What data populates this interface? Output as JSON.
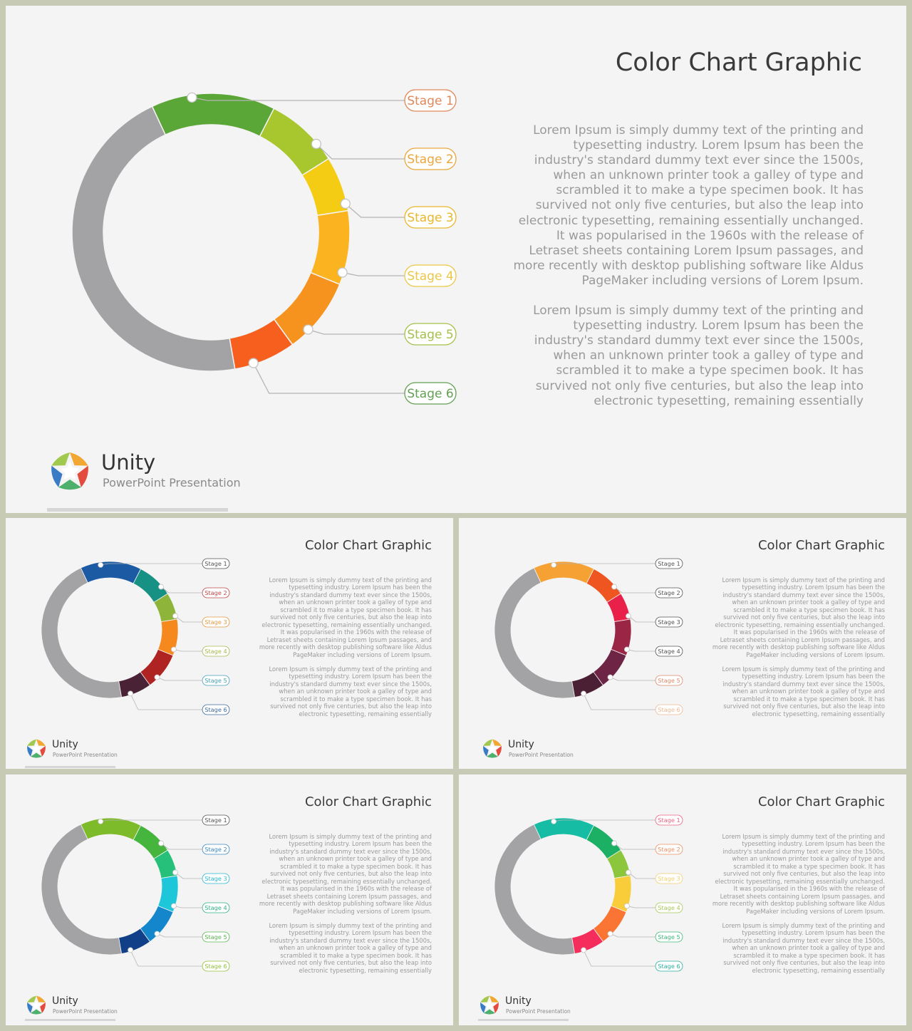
{
  "title": "Color Chart Graphic",
  "brand": {
    "name": "Unity",
    "subtitle": "PowerPoint Presentation"
  },
  "paragraph_1": "Lorem Ipsum is simply dummy text of the printing and typesetting industry. Lorem Ipsum has been the industry's standard dummy text ever since the 1500s, when an unknown printer took a galley of type and scrambled it to make a type specimen book. It has survived not only five centuries, but also the leap into electronic typesetting, remaining essentially unchanged. It was popularised in the 1960s with the release of Letraset sheets containing Lorem Ipsum passages, and more recently with desktop publishing software like Aldus PageMaker including versions of Lorem Ipsum.",
  "paragraph_2": "Lorem Ipsum is simply dummy text of the printing and typesetting industry. Lorem Ipsum has been the industry's standard dummy text ever since the 1500s, when an unknown printer took a galley of type and scrambled it to make a type specimen book. It has survived not only five centuries, but also the leap into electronic typesetting, remaining essentially",
  "stage_labels": [
    "Stage 1",
    "Stage 2",
    "Stage 3",
    "Stage 4",
    "Stage 5",
    "Stage 6"
  ],
  "remainder_color": "#a3a3a6",
  "slides": [
    {
      "variant": "large",
      "segment_colors": [
        "#5aa636",
        "#a8c62e",
        "#f5cc14",
        "#fbb420",
        "#f6931e",
        "#f65f1e"
      ],
      "label_colors": [
        "#e0885a",
        "#eba63c",
        "#eab62e",
        "#ecc646",
        "#a4c04a",
        "#62a052"
      ]
    },
    {
      "variant": "small",
      "segment_colors": [
        "#1c5ba4",
        "#179184",
        "#8eb43a",
        "#f5891e",
        "#b02323",
        "#4a2236"
      ],
      "label_colors": [
        "#555555",
        "#c04848",
        "#e09a44",
        "#a8b84c",
        "#48a0b6",
        "#3e6aa0"
      ]
    },
    {
      "variant": "small",
      "segment_colors": [
        "#f5a133",
        "#ee5520",
        "#e8204a",
        "#9a2545",
        "#6e2545",
        "#4b2035"
      ],
      "label_colors": [
        "#555555",
        "#555555",
        "#555555",
        "#555555",
        "#e08a6a",
        "#f0b890"
      ]
    },
    {
      "variant": "small",
      "segment_colors": [
        "#7dbb2a",
        "#45b53e",
        "#27c07a",
        "#1dc6d8",
        "#1386cc",
        "#113f88"
      ],
      "label_colors": [
        "#555555",
        "#3a88c2",
        "#2ab8d0",
        "#30b288",
        "#5ab452",
        "#92c03a"
      ]
    },
    {
      "variant": "small",
      "segment_colors": [
        "#16bca4",
        "#1bb063",
        "#8cc63c",
        "#f9cd3a",
        "#fa7533",
        "#f52d5c"
      ],
      "label_colors": [
        "#f06080",
        "#f09060",
        "#f0d070",
        "#a8c858",
        "#40b878",
        "#28b0a0"
      ]
    }
  ],
  "segment_degrees": [
    [
      -25,
      27
    ],
    [
      27,
      58
    ],
    [
      58,
      81
    ],
    [
      81,
      112
    ],
    [
      112,
      144
    ],
    [
      144,
      170
    ]
  ],
  "colors": {
    "background": "#c7cbb5",
    "slide": "#f4f4f4",
    "logo": [
      "#f0a020",
      "#e03c2c",
      "#40a860",
      "#2870c0",
      "#9ac440"
    ]
  }
}
